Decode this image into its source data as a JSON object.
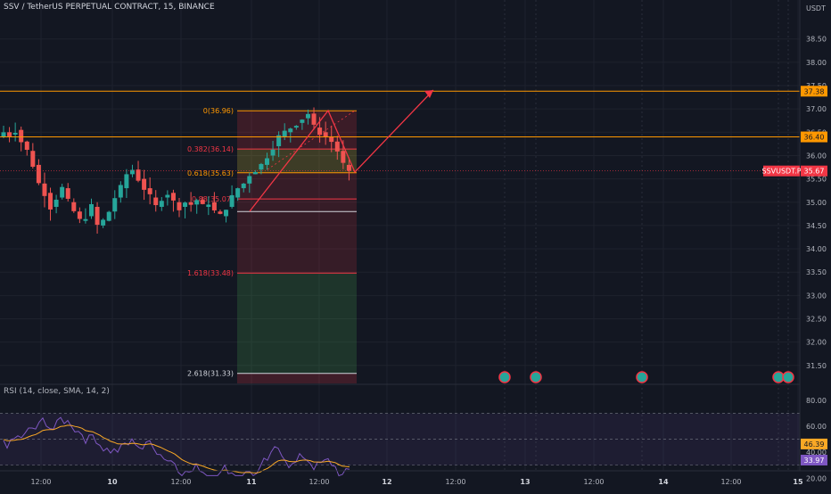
{
  "header": {
    "symbol_title": "SSV / TetherUS PERPETUAL CONTRACT, 15, BINANCE"
  },
  "rsi_header": {
    "label": "RSI (14, close, SMA, 14, 2)"
  },
  "price_axis": {
    "currency": "USDT",
    "ticks": [
      "38.50",
      "38.00",
      "37.50",
      "37.00",
      "36.50",
      "36.00",
      "35.50",
      "35.00",
      "34.50",
      "34.00",
      "33.50",
      "33.00",
      "32.50",
      "32.00",
      "31.50"
    ]
  },
  "price_tags": [
    {
      "label": "37.38",
      "kind": "level"
    },
    {
      "label": "36.40",
      "kind": "level"
    },
    {
      "label": "SSVUSDT.P",
      "kind": "symbol"
    },
    {
      "label": "35.67",
      "kind": "last"
    }
  ],
  "rsi_axis": {
    "ticks": [
      "80.00",
      "60.00",
      "40.00",
      "20.00"
    ],
    "tags": [
      {
        "label": "46.39",
        "kind": "sma"
      },
      {
        "label": "33.97",
        "kind": "rsi"
      }
    ]
  },
  "time_axis": {
    "labels": [
      "12:00",
      "10",
      "12:00",
      "11",
      "12:00",
      "12",
      "12:00",
      "13",
      "12:00",
      "14",
      "12:00",
      "15"
    ]
  },
  "fib_labels": [
    {
      "text": "0(36.96)",
      "level": 36.96,
      "color": "#ff9800"
    },
    {
      "text": "0.382(36.14)",
      "level": 36.14,
      "color": "#f23645"
    },
    {
      "text": "0.618(35.63)",
      "level": 35.63,
      "color": "#ff9800"
    },
    {
      "text": "0.88(35.07)",
      "level": 35.07,
      "color": "#f23645"
    },
    {
      "text": "1.618(33.48)",
      "level": 33.48,
      "color": "#f23645"
    },
    {
      "text": "2.618(31.33)",
      "level": 31.33,
      "color": "#d1d4dc"
    }
  ],
  "colors": {
    "background": "#131722",
    "up": "#26a69a",
    "down": "#ef5350",
    "level_line": "#ff9800",
    "rsi_line": "#7e57c2",
    "rsi_sma": "#f9a825",
    "arrow": "#f23645"
  }
}
